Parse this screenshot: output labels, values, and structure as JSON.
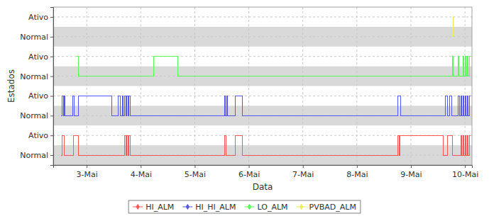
{
  "chart_data": {
    "type": "line",
    "line_style": "step",
    "x_label": "Data",
    "y_label": "Estados",
    "xlim": [
      2.38,
      10.13
    ],
    "xticks": [
      {
        "value": 3,
        "label": "3-Mai"
      },
      {
        "value": 4,
        "label": "4-Mai"
      },
      {
        "value": 5,
        "label": "5-Mai"
      },
      {
        "value": 6,
        "label": "6-Mai"
      },
      {
        "value": 7,
        "label": "7-Mai"
      },
      {
        "value": 8,
        "label": "8-Mai"
      },
      {
        "value": 9,
        "label": "9-Mai"
      },
      {
        "value": 10,
        "label": "10-Mai"
      }
    ],
    "ylim": [
      -0.5,
      7.5
    ],
    "yticks": [
      {
        "value": 0,
        "label": "Normal"
      },
      {
        "value": 1,
        "label": "Ativo"
      },
      {
        "value": 2,
        "label": "Normal"
      },
      {
        "value": 3,
        "label": "Ativo"
      },
      {
        "value": 4,
        "label": "Normal"
      },
      {
        "value": 5,
        "label": "Ativo"
      },
      {
        "value": 6,
        "label": "Normal"
      },
      {
        "value": 7,
        "label": "Ativo"
      }
    ],
    "grid": true,
    "legend": "bottom",
    "series": [
      {
        "name": "HI_ALM",
        "color": "#ff5555",
        "x": [
          2.53,
          2.55,
          2.58,
          2.75,
          2.84,
          3.7,
          3.72,
          3.74,
          3.76,
          3.78,
          3.8,
          5.55,
          5.58,
          5.75,
          5.88,
          8.76,
          8.78,
          8.8,
          9.6,
          9.68,
          9.77,
          9.92,
          9.94,
          9.96,
          9.98,
          10.0,
          10.02,
          10.04,
          10.06,
          10.08,
          10.1
        ],
        "values": [
          0,
          1,
          0,
          1,
          0,
          1,
          0,
          1,
          0,
          1,
          0,
          1,
          0,
          1,
          0,
          1,
          0,
          1,
          0,
          1,
          0,
          1,
          0,
          1,
          0,
          1,
          0,
          1,
          0,
          1,
          1
        ]
      },
      {
        "name": "HI_HI_ALM",
        "color": "#5555ff",
        "x": [
          2.53,
          2.55,
          2.57,
          2.59,
          2.6,
          2.74,
          2.77,
          2.84,
          3.46,
          3.58,
          3.62,
          3.66,
          3.68,
          3.7,
          3.72,
          3.74,
          3.76,
          3.78,
          3.8,
          5.55,
          5.57,
          5.59,
          5.61,
          5.75,
          5.88,
          8.76,
          8.81,
          9.64,
          9.68,
          9.72,
          9.76,
          9.88,
          9.9,
          9.92,
          9.94,
          9.96,
          9.98,
          10.0,
          10.02,
          10.04,
          10.06,
          10.08,
          10.1
        ],
        "values": [
          2,
          3,
          2,
          3,
          2,
          3,
          2,
          3,
          2,
          3,
          2,
          3,
          2,
          3,
          2,
          3,
          2,
          3,
          2,
          3,
          2,
          3,
          2,
          3,
          2,
          3,
          2,
          3,
          2,
          3,
          2,
          3,
          2,
          3,
          2,
          3,
          2,
          3,
          2,
          3,
          2,
          3,
          3
        ]
      },
      {
        "name": "LO_ALM",
        "color": "#55ff55",
        "x": [
          2.82,
          2.84,
          4.24,
          4.68,
          9.77,
          9.78,
          9.87,
          9.89,
          9.96,
          9.98,
          10.0,
          10.02,
          10.04,
          10.06,
          10.08,
          10.1
        ],
        "values": [
          5,
          4,
          5,
          4,
          5,
          4,
          5,
          4,
          5,
          4,
          5,
          4,
          5,
          4,
          5,
          5
        ]
      },
      {
        "name": "PVBAD_ALM",
        "color": "#eeee55",
        "x": [
          9.77,
          9.78
        ],
        "values": [
          7,
          6
        ]
      }
    ]
  }
}
